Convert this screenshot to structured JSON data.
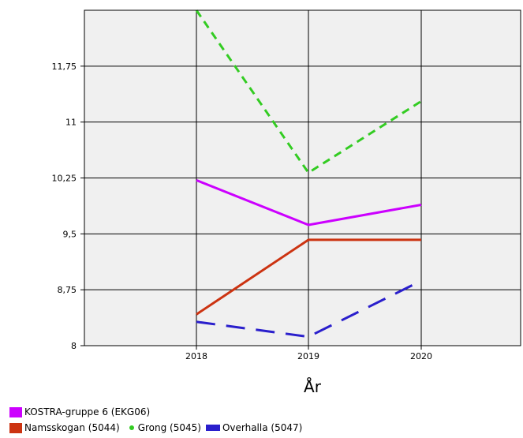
{
  "chart_data": {
    "type": "line",
    "xlabel": "År",
    "ylabel": "",
    "x": [
      "2018",
      "2019",
      "2020"
    ],
    "ylim": [
      8,
      12.5
    ],
    "yticks": [
      "8",
      "8,75",
      "9,5",
      "10,25",
      "11",
      "11,75"
    ],
    "ytick_values": [
      8,
      8.75,
      9.5,
      10.25,
      11,
      11.75
    ],
    "grid": true,
    "legend_position": "bottom-left",
    "series": [
      {
        "name": "KOSTRA-gruppe 6 (EKG06)",
        "values": [
          10.22,
          9.62,
          9.89
        ],
        "color": "#cc00ff",
        "style": "solid"
      },
      {
        "name": "Namsskogan (5044)",
        "values": [
          8.42,
          9.42,
          9.42
        ],
        "color": "#cc3311",
        "style": "solid"
      },
      {
        "name": "Grong (5045)",
        "values": [
          12.5,
          10.32,
          11.28
        ],
        "color": "#33cc22",
        "style": "dashed"
      },
      {
        "name": "Overhalla (5047)",
        "values": [
          8.32,
          8.12,
          8.87
        ],
        "color": "#2a1fcc",
        "style": "long-dashed"
      }
    ]
  }
}
